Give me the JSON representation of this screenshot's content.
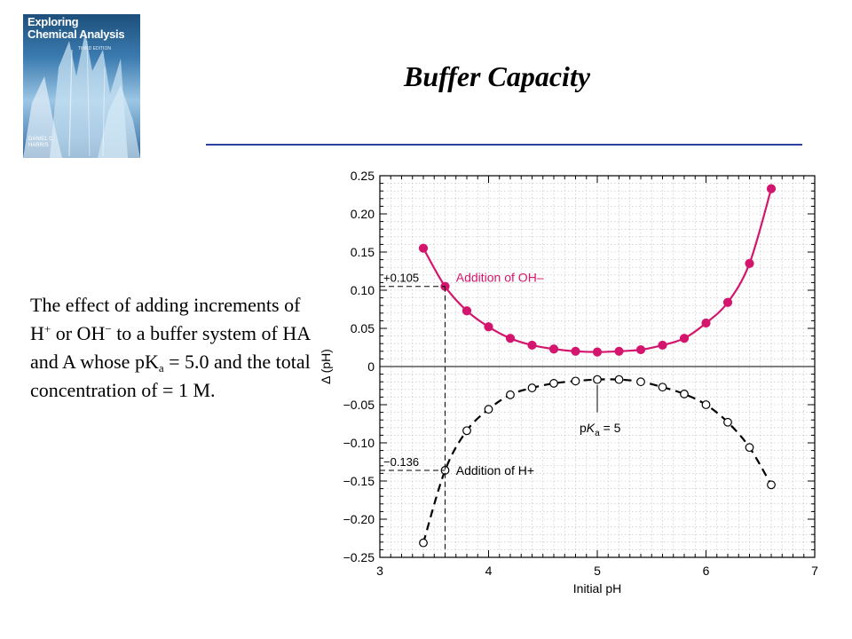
{
  "slide": {
    "title": "Buffer Capacity",
    "description": {
      "part1": "The effect of adding increments of H",
      "sup_plus": "+",
      "part2": " or OH",
      "sup_minus": "−",
      "part3": " to a buffer system of HA and A whose pK",
      "sub_a": "a",
      "part4": " = 5.0 and the total concentration of = 1 M."
    }
  },
  "book_cover": {
    "title_line1": "Exploring",
    "title_line2": "Chemical Analysis",
    "edition": "THIRD EDITION",
    "author": "DANIEL C.\nHARRIS"
  },
  "colors": {
    "oh_series": "#d4156e",
    "h_series": "#000000",
    "rule": "#2e3f9e"
  },
  "chart_data": {
    "type": "scatter",
    "xlabel": "Initial pH",
    "ylabel": "Δ (pH)",
    "xlim": [
      3,
      7
    ],
    "ylim": [
      -0.25,
      0.25
    ],
    "x_ticks": [
      "3",
      "4",
      "5",
      "6",
      "7"
    ],
    "y_ticks": [
      "0.25",
      "0.20",
      "0.15",
      "0.10",
      "0.05",
      "0",
      "−0.05",
      "−0.10",
      "−0.15",
      "−0.20",
      "−0.25"
    ],
    "grid": true,
    "series": [
      {
        "name": "Addition of OH–",
        "marker": "filled-circle",
        "line": "solid",
        "x": [
          3.4,
          3.6,
          3.8,
          4.0,
          4.2,
          4.4,
          4.6,
          4.8,
          5.0,
          5.2,
          5.4,
          5.6,
          5.8,
          6.0,
          6.2,
          6.4,
          6.6
        ],
        "y": [
          0.155,
          0.105,
          0.073,
          0.052,
          0.037,
          0.028,
          0.023,
          0.02,
          0.019,
          0.02,
          0.022,
          0.028,
          0.037,
          0.057,
          0.084,
          0.135,
          0.233
        ]
      },
      {
        "name": "Addition of H+",
        "marker": "open-circle",
        "line": "dashed",
        "x": [
          3.4,
          3.6,
          3.8,
          4.0,
          4.2,
          4.4,
          4.6,
          4.8,
          5.0,
          5.2,
          5.4,
          5.6,
          5.8,
          6.0,
          6.2,
          6.4,
          6.6
        ],
        "y": [
          -0.231,
          -0.136,
          -0.084,
          -0.056,
          -0.037,
          -0.028,
          -0.022,
          -0.019,
          -0.017,
          -0.017,
          -0.02,
          -0.027,
          -0.036,
          -0.05,
          -0.073,
          -0.106,
          -0.155
        ]
      }
    ],
    "annotations": {
      "oh_value": "+0.105",
      "h_value": "−0.136",
      "oh_label": "Addition of OH–",
      "h_label": "Addition of H+",
      "pka_label_prefix": "p",
      "pka_label_k": "K",
      "pka_label_sub": "a",
      "pka_label_suffix": " = 5",
      "marker_x": 3.6,
      "pka_x": 5.0
    }
  }
}
